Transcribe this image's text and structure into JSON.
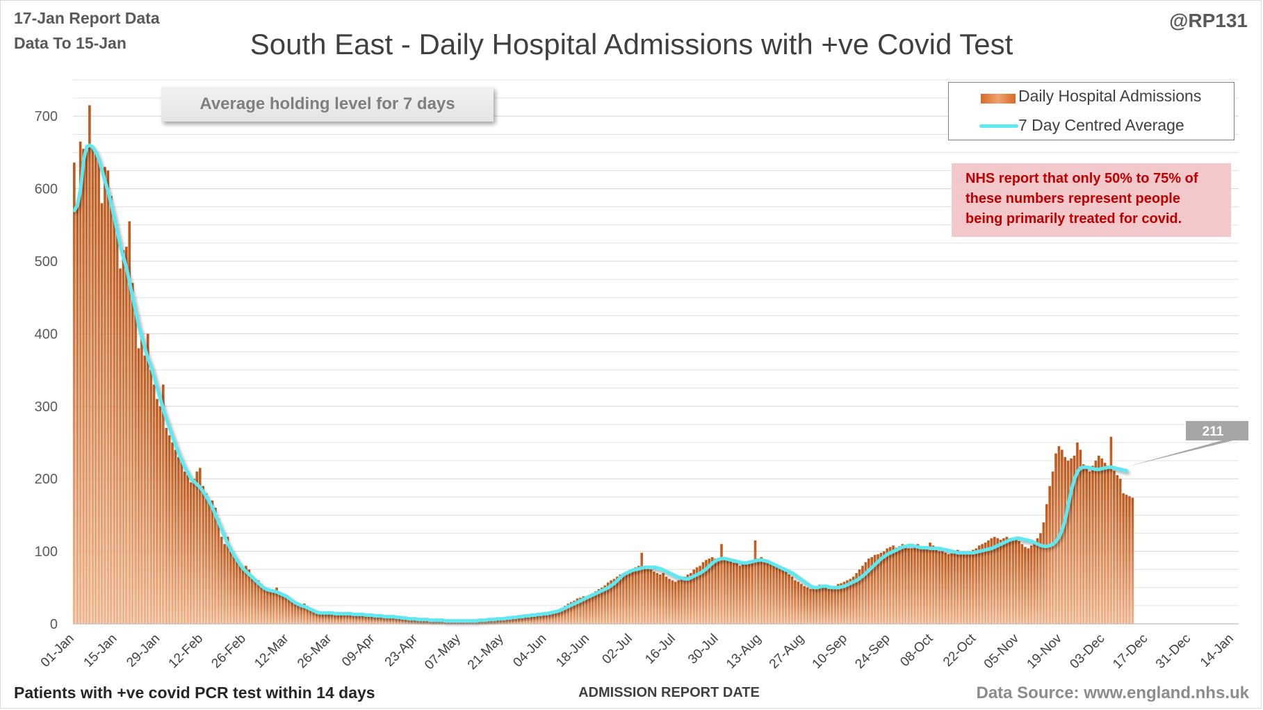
{
  "header": {
    "report_line": "17-Jan Report Data",
    "data_to_line": "Data To 15-Jan",
    "handle": "@RP131"
  },
  "callout": "Average holding level for 7 days",
  "nhs_note": {
    "line1": "NHS report that only 50% to 75% of",
    "line2": "these numbers represent people",
    "line3": "being primarily treated for covid."
  },
  "footer": {
    "left": "Patients with +ve covid PCR test within 14 days",
    "source": "Data Source: www.england.nhs.uk"
  },
  "colors": {
    "bar_dark": "#c0571a",
    "bar_light": "#f5b48a",
    "average_line": "#5ee8f0",
    "gridline": "#d9d9d9",
    "note_bg": "#f2c8ca",
    "note_text": "#c00000"
  },
  "chart_data": {
    "type": "bar",
    "title": "South East - Daily Hospital Admissions with +ve Covid Test",
    "xlabel": "ADMISSION REPORT DATE",
    "ylabel": "",
    "ylim": [
      0,
      750
    ],
    "yticks": [
      0,
      100,
      200,
      300,
      400,
      500,
      600,
      700
    ],
    "grid": true,
    "legend_position": "top-right",
    "x_tick_labels": [
      "01-Jan",
      "15-Jan",
      "29-Jan",
      "12-Feb",
      "26-Feb",
      "12-Mar",
      "26-Mar",
      "09-Apr",
      "23-Apr",
      "07-May",
      "21-May",
      "04-Jun",
      "18-Jun",
      "02-Jul",
      "16-Jul",
      "30-Jul",
      "13-Aug",
      "27-Aug",
      "10-Sep",
      "24-Sep",
      "08-Oct",
      "22-Oct",
      "05-Nov",
      "19-Nov",
      "03-Dec",
      "17-Dec",
      "31-Dec",
      "14-Jan"
    ],
    "x_start": "01-Jan",
    "x_end": "15-Jan",
    "num_days": 380,
    "series": [
      {
        "name": "Daily Hospital Admissions",
        "kind": "bar",
        "values": [
          636,
          580,
          665,
          655,
          652,
          715,
          658,
          650,
          640,
          580,
          630,
          625,
          590,
          560,
          540,
          490,
          515,
          520,
          555,
          470,
          430,
          380,
          400,
          370,
          400,
          350,
          330,
          310,
          300,
          330,
          270,
          260,
          250,
          240,
          230,
          225,
          210,
          205,
          195,
          200,
          210,
          215,
          190,
          180,
          170,
          170,
          160,
          145,
          120,
          110,
          120,
          100,
          95,
          90,
          80,
          75,
          80,
          75,
          65,
          62,
          60,
          55,
          50,
          48,
          46,
          47,
          50,
          44,
          40,
          38,
          35,
          30,
          28,
          27,
          25,
          28,
          23,
          20,
          18,
          16,
          15,
          14,
          16,
          13,
          15,
          14,
          13,
          12,
          16,
          15,
          14,
          14,
          13,
          14,
          13,
          12,
          12,
          11,
          12,
          11,
          11,
          10,
          12,
          10,
          11,
          9,
          8,
          8,
          7,
          7,
          6,
          6,
          6,
          6,
          5,
          5,
          5,
          5,
          4,
          4,
          4,
          4,
          4,
          3,
          3,
          4,
          3,
          3,
          3,
          3,
          3,
          4,
          4,
          5,
          5,
          6,
          6,
          6,
          7,
          7,
          7,
          8,
          8,
          9,
          9,
          9,
          10,
          11,
          12,
          11,
          12,
          13,
          14,
          14,
          15,
          16,
          17,
          18,
          20,
          22,
          25,
          28,
          30,
          32,
          35,
          36,
          38,
          38,
          40,
          42,
          45,
          48,
          50,
          53,
          57,
          60,
          62,
          65,
          68,
          70,
          72,
          74,
          76,
          78,
          80,
          98,
          78,
          80,
          75,
          72,
          70,
          68,
          70,
          65,
          62,
          60,
          58,
          60,
          62,
          65,
          68,
          70,
          75,
          78,
          80,
          85,
          88,
          90,
          92,
          90,
          88,
          110,
          90,
          88,
          86,
          84,
          85,
          80,
          82,
          84,
          86,
          88,
          115,
          90,
          92,
          88,
          85,
          84,
          82,
          80,
          78,
          75,
          72,
          68,
          65,
          60,
          58,
          55,
          52,
          50,
          48,
          50,
          52,
          54,
          52,
          50,
          48,
          50,
          52,
          55,
          56,
          58,
          60,
          62,
          65,
          70,
          75,
          80,
          85,
          90,
          92,
          95,
          96,
          98,
          100,
          104,
          106,
          108,
          105,
          107,
          110,
          108,
          104,
          104,
          107,
          110,
          106,
          104,
          106,
          112,
          108,
          106,
          100,
          100,
          98,
          96,
          97,
          99,
          102,
          100,
          98,
          100,
          100,
          102,
          104,
          108,
          110,
          112,
          115,
          118,
          120,
          118,
          116,
          118,
          120,
          118,
          116,
          118,
          114,
          110,
          106,
          104,
          108,
          112,
          118,
          125,
          140,
          165,
          190,
          210,
          235,
          245,
          240,
          230,
          225,
          228,
          232,
          250,
          240,
          220,
          215,
          210,
          218,
          225,
          232,
          228,
          222,
          218,
          258,
          211,
          205,
          200,
          180,
          178,
          176,
          174
        ]
      },
      {
        "name": "7 Day Centred Average",
        "kind": "line",
        "values": [
          570,
          578,
          600,
          640,
          658,
          660,
          657,
          650,
          640,
          625,
          610,
          595,
          578,
          560,
          540,
          520,
          505,
          490,
          470,
          450,
          430,
          410,
          395,
          380,
          365,
          355,
          340,
          325,
          310,
          295,
          282,
          270,
          258,
          246,
          235,
          225,
          215,
          208,
          200,
          196,
          192,
          188,
          182,
          175,
          168,
          160,
          150,
          140,
          130,
          120,
          110,
          102,
          95,
          88,
          82,
          76,
          72,
          68,
          64,
          60,
          56,
          52,
          49,
          47,
          46,
          45,
          44,
          42,
          40,
          38,
          35,
          32,
          29,
          27,
          25,
          24,
          22,
          20,
          18,
          16,
          15,
          15,
          15,
          15,
          15,
          14,
          14,
          14,
          14,
          14,
          14,
          13,
          13,
          13,
          13,
          12,
          12,
          12,
          11,
          11,
          11,
          10,
          10,
          10,
          10,
          9,
          9,
          8,
          8,
          7,
          7,
          7,
          6,
          6,
          6,
          6,
          5,
          5,
          5,
          5,
          5,
          4,
          4,
          4,
          4,
          4,
          4,
          4,
          4,
          4,
          4,
          4,
          5,
          5,
          5,
          6,
          6,
          6,
          7,
          7,
          7,
          8,
          8,
          9,
          9,
          10,
          10,
          11,
          11,
          12,
          12,
          13,
          13,
          14,
          14,
          15,
          16,
          17,
          18,
          20,
          22,
          24,
          26,
          28,
          30,
          32,
          34,
          36,
          38,
          40,
          42,
          44,
          46,
          48,
          50,
          53,
          56,
          60,
          64,
          68,
          70,
          72,
          74,
          75,
          76,
          77,
          78,
          78,
          78,
          78,
          77,
          76,
          74,
          72,
          70,
          68,
          66,
          64,
          63,
          62,
          62,
          64,
          66,
          68,
          70,
          73,
          76,
          80,
          84,
          87,
          89,
          90,
          90,
          89,
          88,
          87,
          86,
          85,
          84,
          84,
          85,
          86,
          87,
          88,
          88,
          87,
          86,
          84,
          82,
          80,
          78,
          76,
          74,
          72,
          70,
          67,
          64,
          61,
          58,
          55,
          52,
          50,
          50,
          51,
          52,
          52,
          51,
          50,
          50,
          50,
          51,
          52,
          54,
          56,
          58,
          60,
          63,
          66,
          70,
          74,
          78,
          82,
          86,
          90,
          93,
          96,
          98,
          100,
          102,
          104,
          106,
          107,
          108,
          108,
          107,
          106,
          105,
          105,
          105,
          104,
          104,
          104,
          104,
          103,
          102,
          101,
          100,
          99,
          98,
          98,
          98,
          98,
          98,
          98,
          99,
          100,
          101,
          102,
          103,
          104,
          106,
          108,
          110,
          112,
          114,
          116,
          117,
          118,
          118,
          117,
          116,
          115,
          114,
          112,
          110,
          108,
          107,
          107,
          108,
          110,
          114,
          120,
          130,
          145,
          165,
          185,
          200,
          210,
          215,
          216,
          216,
          215,
          214,
          213,
          213,
          214,
          215,
          216,
          216,
          215,
          214,
          213,
          212,
          211
        ]
      }
    ],
    "last_value_label": "211"
  }
}
